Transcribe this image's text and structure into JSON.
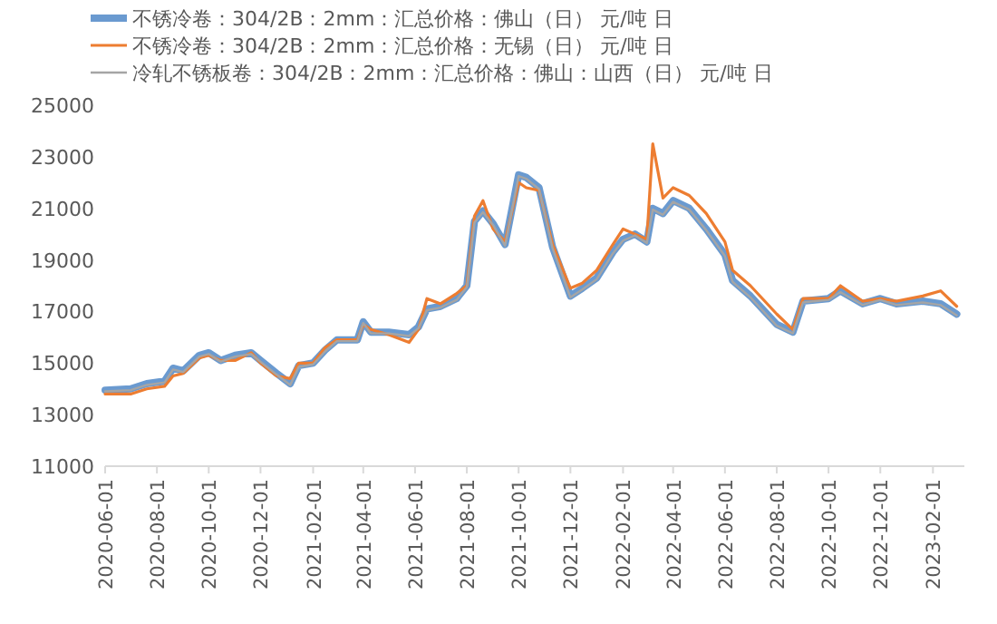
{
  "chart_data": {
    "type": "line",
    "xlim": [
      "2020-06-01",
      "2023-03-10"
    ],
    "ylim": [
      11000,
      25000
    ],
    "yticks": [
      11000,
      13000,
      15000,
      17000,
      19000,
      21000,
      23000,
      25000
    ],
    "xticks": [
      "2020-06-01",
      "2020-08-01",
      "2020-10-01",
      "2020-12-01",
      "2021-02-01",
      "2021-04-01",
      "2021-06-01",
      "2021-08-01",
      "2021-10-01",
      "2021-12-01",
      "2022-02-01",
      "2022-04-01",
      "2022-06-01",
      "2022-08-01",
      "2022-10-01",
      "2022-12-01",
      "2023-02-01"
    ],
    "legend": "top left",
    "grid": false,
    "marker": "none",
    "line_style": "solid",
    "x": [
      "2020-06-01",
      "2020-07-01",
      "2020-07-20",
      "2020-08-10",
      "2020-08-20",
      "2020-09-01",
      "2020-09-20",
      "2020-10-01",
      "2020-10-15",
      "2020-11-01",
      "2020-11-20",
      "2020-12-01",
      "2020-12-20",
      "2021-01-05",
      "2021-01-15",
      "2021-02-01",
      "2021-02-15",
      "2021-03-01",
      "2021-03-25",
      "2021-04-01",
      "2021-04-10",
      "2021-05-01",
      "2021-05-25",
      "2021-06-05",
      "2021-06-15",
      "2021-07-01",
      "2021-07-20",
      "2021-08-01",
      "2021-08-10",
      "2021-08-20",
      "2021-09-01",
      "2021-09-15",
      "2021-10-01",
      "2021-10-10",
      "2021-10-25",
      "2021-11-10",
      "2021-12-01",
      "2021-12-15",
      "2022-01-01",
      "2022-01-20",
      "2022-02-01",
      "2022-02-15",
      "2022-03-01",
      "2022-03-08",
      "2022-03-20",
      "2022-04-01",
      "2022-04-20",
      "2022-05-10",
      "2022-06-01",
      "2022-06-10",
      "2022-07-01",
      "2022-08-01",
      "2022-08-20",
      "2022-09-01",
      "2022-10-01",
      "2022-10-15",
      "2022-11-10",
      "2022-12-01",
      "2022-12-20",
      "2023-01-20",
      "2023-02-10",
      "2023-03-01"
    ],
    "series": [
      {
        "name": "不锈冷卷：304/2B：2mm：汇总价格：佛山（日） 元/吨 日",
        "color": "#6a9ad0",
        "values": [
          13950,
          14000,
          14200,
          14300,
          14800,
          14700,
          15300,
          15400,
          15100,
          15300,
          15400,
          15100,
          14600,
          14200,
          14900,
          15000,
          15500,
          15900,
          15900,
          16600,
          16200,
          16200,
          16100,
          16400,
          17100,
          17200,
          17500,
          18000,
          20500,
          20900,
          20400,
          19600,
          22300,
          22200,
          21800,
          19500,
          17600,
          17900,
          18300,
          19300,
          19800,
          20000,
          19700,
          21000,
          20800,
          21300,
          21000,
          20200,
          19200,
          18200,
          17600,
          16500,
          16200,
          17400,
          17500,
          17800,
          17300,
          17500,
          17300,
          17400,
          17300,
          16900
        ]
      },
      {
        "name": "不锈冷卷：304/2B：2mm：汇总价格：无锡（日） 元/吨 日",
        "color": "#ed7d31",
        "values": [
          13800,
          13800,
          14000,
          14100,
          14500,
          14600,
          15200,
          15300,
          15100,
          15100,
          15400,
          15000,
          14500,
          14400,
          15000,
          15000,
          15600,
          15900,
          15900,
          16500,
          16300,
          16100,
          15800,
          16300,
          17500,
          17300,
          17700,
          18000,
          20700,
          21300,
          20200,
          19700,
          22000,
          21800,
          21700,
          19600,
          17900,
          18100,
          18600,
          19600,
          20200,
          20000,
          19800,
          23500,
          21400,
          21800,
          21500,
          20800,
          19700,
          18600,
          18000,
          16900,
          16300,
          17500,
          17500,
          18000,
          17400,
          17500,
          17400,
          17600,
          17800,
          17200
        ]
      },
      {
        "name": "冷轧不锈板卷：304/2B：2mm：汇总价格：佛山：山西（日） 元/吨 日",
        "color": "#a5a5a5",
        "values": [
          13900,
          13950,
          14150,
          14250,
          14750,
          14650,
          15250,
          15350,
          15050,
          15250,
          15350,
          15050,
          14550,
          14150,
          14850,
          14950,
          15450,
          15850,
          15850,
          16550,
          16150,
          16150,
          16050,
          16350,
          17050,
          17150,
          17450,
          17950,
          20450,
          20850,
          20350,
          19550,
          22250,
          22150,
          21750,
          19450,
          17550,
          17850,
          18250,
          19250,
          19750,
          19950,
          19650,
          20950,
          20750,
          21250,
          20950,
          20150,
          19150,
          18150,
          17550,
          16450,
          16150,
          17350,
          17450,
          17750,
          17250,
          17450,
          17250,
          17350,
          17250,
          16850
        ]
      }
    ]
  }
}
